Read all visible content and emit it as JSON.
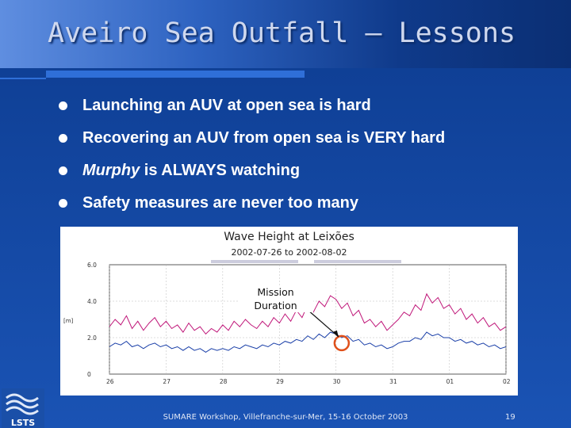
{
  "slide": {
    "title": "Aveiro Sea Outfall – Lessons",
    "bullets": [
      {
        "emph": "",
        "text": "Launching an AUV at open sea is hard"
      },
      {
        "emph": "",
        "text": "Recovering an AUV from open sea is VERY hard"
      },
      {
        "emph": "Murphy",
        "text": " is ALWAYS watching"
      },
      {
        "emph": "",
        "text": "Safety measures are never too many"
      }
    ],
    "footer": "SUMARE Workshop, Villefranche-sur-Mer, 15-16 October 2003",
    "page_number": "19",
    "logo_text": "LSTS"
  },
  "colors": {
    "background": "#1246a0",
    "series_max": "#c0187a",
    "series_sig": "#1a3fa8",
    "highlight_circle": "#e0501a"
  },
  "chart_data": {
    "type": "line",
    "title": "Wave Height at Leixões",
    "subtitle": "2002-07-26 to 2002-08-02",
    "ylabel": "[m]",
    "ylim": [
      0,
      6
    ],
    "yticks": [
      "0",
      "2.0",
      "4.0",
      "6.0"
    ],
    "xticks": [
      "26",
      "27",
      "28",
      "29",
      "30",
      "31",
      "01",
      "02"
    ],
    "annotation": "Mission\nDuration",
    "series": [
      {
        "color": "#c0187a",
        "x": [
          0,
          0.1,
          0.2,
          0.3,
          0.4,
          0.5,
          0.6,
          0.7,
          0.8,
          0.9,
          1.0,
          1.1,
          1.2,
          1.3,
          1.4,
          1.5,
          1.6,
          1.7,
          1.8,
          1.9,
          2.0,
          2.1,
          2.2,
          2.3,
          2.4,
          2.5,
          2.6,
          2.7,
          2.8,
          2.9,
          3.0,
          3.1,
          3.2,
          3.3,
          3.4,
          3.5,
          3.6,
          3.7,
          3.8,
          3.9,
          4.0,
          4.1,
          4.2,
          4.3,
          4.4,
          4.5,
          4.6,
          4.7,
          4.8,
          4.9,
          5.0,
          5.1,
          5.2,
          5.3,
          5.4,
          5.5,
          5.6,
          5.7,
          5.8,
          5.9,
          6.0,
          6.1,
          6.2,
          6.3,
          6.4,
          6.5,
          6.6,
          6.7,
          6.8,
          6.9,
          7.0
        ],
        "values": [
          2.6,
          3.0,
          2.7,
          3.2,
          2.5,
          2.9,
          2.4,
          2.8,
          3.1,
          2.6,
          2.9,
          2.5,
          2.7,
          2.3,
          2.8,
          2.4,
          2.6,
          2.2,
          2.5,
          2.3,
          2.7,
          2.4,
          2.9,
          2.6,
          3.0,
          2.7,
          2.5,
          2.9,
          2.6,
          3.1,
          2.8,
          3.3,
          2.9,
          3.5,
          3.1,
          3.8,
          3.4,
          4.0,
          3.7,
          4.3,
          4.1,
          3.6,
          3.9,
          3.2,
          3.5,
          2.8,
          3.0,
          2.6,
          2.9,
          2.4,
          2.7,
          3.0,
          3.4,
          3.2,
          3.8,
          3.5,
          4.4,
          3.9,
          4.2,
          3.6,
          3.8,
          3.3,
          3.6,
          3.0,
          3.3,
          2.8,
          3.1,
          2.6,
          2.8,
          2.4,
          2.6
        ]
      },
      {
        "color": "#1a3fa8",
        "x": [
          0,
          0.1,
          0.2,
          0.3,
          0.4,
          0.5,
          0.6,
          0.7,
          0.8,
          0.9,
          1.0,
          1.1,
          1.2,
          1.3,
          1.4,
          1.5,
          1.6,
          1.7,
          1.8,
          1.9,
          2.0,
          2.1,
          2.2,
          2.3,
          2.4,
          2.5,
          2.6,
          2.7,
          2.8,
          2.9,
          3.0,
          3.1,
          3.2,
          3.3,
          3.4,
          3.5,
          3.6,
          3.7,
          3.8,
          3.9,
          4.0,
          4.1,
          4.2,
          4.3,
          4.4,
          4.5,
          4.6,
          4.7,
          4.8,
          4.9,
          5.0,
          5.1,
          5.2,
          5.3,
          5.4,
          5.5,
          5.6,
          5.7,
          5.8,
          5.9,
          6.0,
          6.1,
          6.2,
          6.3,
          6.4,
          6.5,
          6.6,
          6.7,
          6.8,
          6.9,
          7.0
        ],
        "values": [
          1.5,
          1.7,
          1.6,
          1.8,
          1.5,
          1.6,
          1.4,
          1.6,
          1.7,
          1.5,
          1.6,
          1.4,
          1.5,
          1.3,
          1.5,
          1.3,
          1.4,
          1.2,
          1.4,
          1.3,
          1.4,
          1.3,
          1.5,
          1.4,
          1.6,
          1.5,
          1.4,
          1.6,
          1.5,
          1.7,
          1.6,
          1.8,
          1.7,
          1.9,
          1.8,
          2.1,
          1.9,
          2.2,
          2.0,
          2.3,
          2.2,
          2.0,
          2.1,
          1.8,
          1.9,
          1.6,
          1.7,
          1.5,
          1.6,
          1.4,
          1.5,
          1.7,
          1.8,
          1.8,
          2.0,
          1.9,
          2.3,
          2.1,
          2.2,
          2.0,
          2.0,
          1.8,
          1.9,
          1.7,
          1.8,
          1.6,
          1.7,
          1.5,
          1.6,
          1.4,
          1.5
        ]
      }
    ],
    "mission_window": {
      "x": 4.1,
      "y": 1.7
    }
  }
}
